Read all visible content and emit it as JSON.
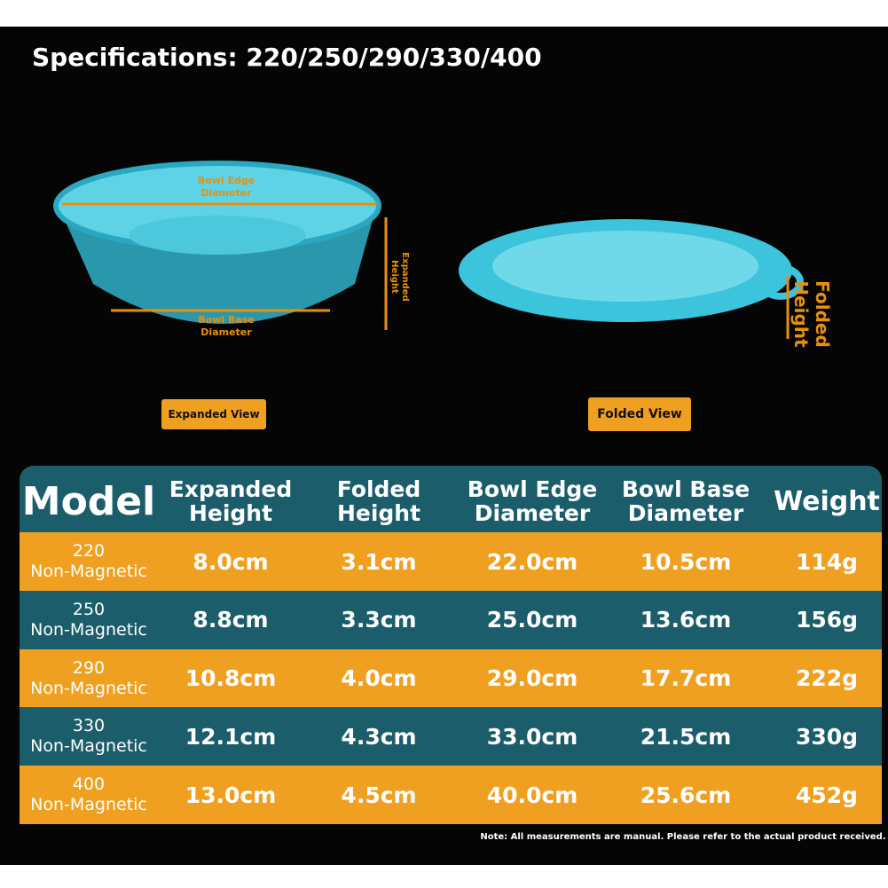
{
  "header": {
    "title": "Specifications: 220/250/290/330/400"
  },
  "expanded": {
    "edge_label": "Bowl Edge Diameter",
    "height_label": "Expanded Height",
    "base_label": "Bowl Base Diameter",
    "view_label": "Expanded View"
  },
  "folded": {
    "height_label": "Folded Height",
    "view_label": "Folded View"
  },
  "table": {
    "headers": [
      "Model",
      "Expanded Height",
      "Folded Height",
      "Bowl Edge Diameter",
      "Bowl Base Diameter",
      "Weight"
    ],
    "rows": [
      {
        "model": "220",
        "type": "Non-Magnetic",
        "cells": [
          "8.0cm",
          "3.1cm",
          "22.0cm",
          "10.5cm",
          "114g"
        ]
      },
      {
        "model": "250",
        "type": "Non-Magnetic",
        "cells": [
          "8.8cm",
          "3.3cm",
          "25.0cm",
          "13.6cm",
          "156g"
        ]
      },
      {
        "model": "290",
        "type": "Non-Magnetic",
        "cells": [
          "10.8cm",
          "4.0cm",
          "29.0cm",
          "17.7cm",
          "222g"
        ]
      },
      {
        "model": "330",
        "type": "Non-Magnetic",
        "cells": [
          "12.1cm",
          "4.3cm",
          "33.0cm",
          "21.5cm",
          "330g"
        ]
      },
      {
        "model": "400",
        "type": "Non-Magnetic",
        "cells": [
          "13.0cm",
          "4.5cm",
          "40.0cm",
          "25.6cm",
          "452g"
        ]
      }
    ]
  },
  "note": "Note: All measurements are manual. Please refer to the actual product received."
}
